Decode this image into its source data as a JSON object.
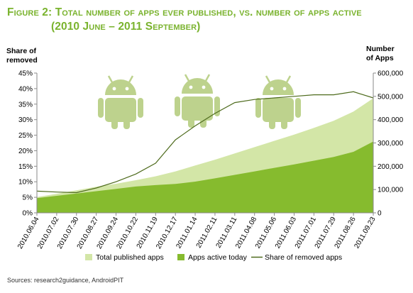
{
  "title_line1": "Figure 2: Total number of apps ever published, vs. number of apps active",
  "title_line2": "(2010 June – 2011 September)",
  "left_axis_title": [
    "Share of",
    "removed"
  ],
  "right_axis_title": [
    "Number",
    "of Apps"
  ],
  "source": "Sources: research2guidance, AndroidPIT",
  "colors": {
    "title": "#7ab32e",
    "total": "#d3e6a7",
    "active": "#86bb2e",
    "share": "#4e6b1d",
    "android": "#a7c468"
  },
  "chart_data": {
    "type": "area",
    "x_labels": [
      "2010.06.04",
      "2010.07.02",
      "2010.07.30",
      "2010.08.27",
      "2010.09.24",
      "2010.10.22",
      "2010.11.19",
      "2010.12.17",
      "2011.01.14",
      "2011.02.11",
      "2011.03.11",
      "2011.04.08",
      "2011.05.06",
      "2011.06.03",
      "2011.07.01",
      "2011.07.29",
      "2011.08.26",
      "2011.09.23"
    ],
    "y_left": {
      "min": 0,
      "max": 0.45,
      "ticks": [
        "0%",
        "5%",
        "10%",
        "15%",
        "20%",
        "25%",
        "30%",
        "35%",
        "40%",
        "45%"
      ]
    },
    "y_right": {
      "min": 0,
      "max": 600000,
      "ticks": [
        "0",
        "100,000",
        "200,000",
        "300,000",
        "400,000",
        "500,000",
        "600,000"
      ]
    },
    "series": [
      {
        "name": "Total published apps",
        "axis": "right",
        "kind": "area",
        "values": [
          68000,
          82000,
          97000,
          112000,
          125000,
          140000,
          157000,
          178000,
          203000,
          228000,
          255000,
          282000,
          309000,
          336000,
          365000,
          395000,
          435000,
          492000
        ]
      },
      {
        "name": "Apps active today",
        "axis": "right",
        "kind": "area",
        "values": [
          63000,
          73000,
          83000,
          93000,
          103000,
          113000,
          119000,
          124000,
          134000,
          148000,
          163000,
          178000,
          193000,
          208000,
          224000,
          240000,
          262000,
          306000
        ]
      },
      {
        "name": "Share of removed apps",
        "axis": "left",
        "kind": "line",
        "values": [
          0.07,
          0.067,
          0.065,
          0.08,
          0.1,
          0.125,
          0.16,
          0.235,
          0.28,
          0.32,
          0.355,
          0.365,
          0.37,
          0.375,
          0.38,
          0.38,
          0.39,
          0.37
        ]
      }
    ]
  }
}
